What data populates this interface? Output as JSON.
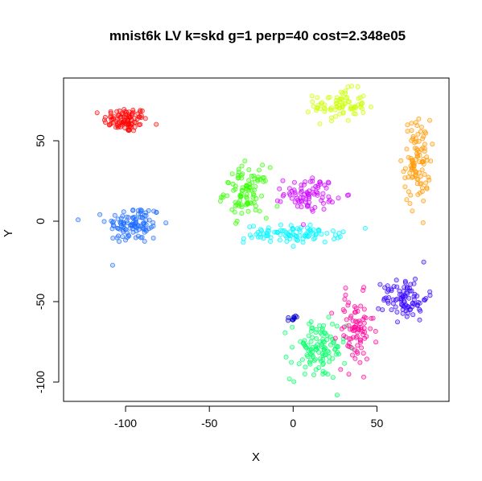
{
  "chart_data": {
    "type": "scatter",
    "title": "mnist6k LV k=skd g=1 perp=40 cost=2.348e05",
    "xlabel": "X",
    "ylabel": "Y",
    "xlim": [
      -137,
      93
    ],
    "ylim": [
      -112,
      89
    ],
    "x_ticks": [
      -100,
      -50,
      0,
      50
    ],
    "x_tick_labels": [
      "-100",
      "-50",
      "0",
      "50"
    ],
    "y_ticks": [
      -100,
      -50,
      0,
      50
    ],
    "y_tick_labels": [
      "-100",
      "-50",
      "0",
      "50"
    ],
    "grid": false,
    "legend": false,
    "marker": "open-circle",
    "clusters": [
      {
        "color": "#FF0000",
        "center": [
          -100,
          63
        ],
        "spread": [
          12,
          7
        ],
        "count": 95
      },
      {
        "color": "#1A6AFF",
        "center": [
          -95,
          -2
        ],
        "spread": [
          15,
          11
        ],
        "count": 110
      },
      {
        "color": "#CCFF00",
        "center": [
          28,
          72
        ],
        "spread": [
          14,
          9
        ],
        "count": 80
      },
      {
        "color": "#FF9900",
        "center": [
          74,
          37
        ],
        "spread": [
          7,
          24
        ],
        "count": 100
      },
      {
        "color": "#33FF00",
        "center": [
          -28,
          18
        ],
        "spread": [
          12,
          14
        ],
        "count": 95
      },
      {
        "color": "#00F5FF",
        "center": [
          0,
          -8
        ],
        "spread": [
          26,
          5
        ],
        "count": 95
      },
      {
        "color": "#CC00FF",
        "center": [
          10,
          17
        ],
        "spread": [
          14,
          9
        ],
        "count": 80
      },
      {
        "color": "#00FF66",
        "center": [
          15,
          -80
        ],
        "spread": [
          15,
          17
        ],
        "count": 115
      },
      {
        "color": "#FF0099",
        "center": [
          37,
          -68
        ],
        "spread": [
          10,
          20
        ],
        "count": 85
      },
      {
        "color": "#3300FF",
        "center": [
          67,
          -48
        ],
        "spread": [
          12,
          12
        ],
        "count": 90
      },
      {
        "color": "#0000CC",
        "center": [
          0,
          -60
        ],
        "spread": [
          3,
          2
        ],
        "count": 10
      }
    ]
  }
}
